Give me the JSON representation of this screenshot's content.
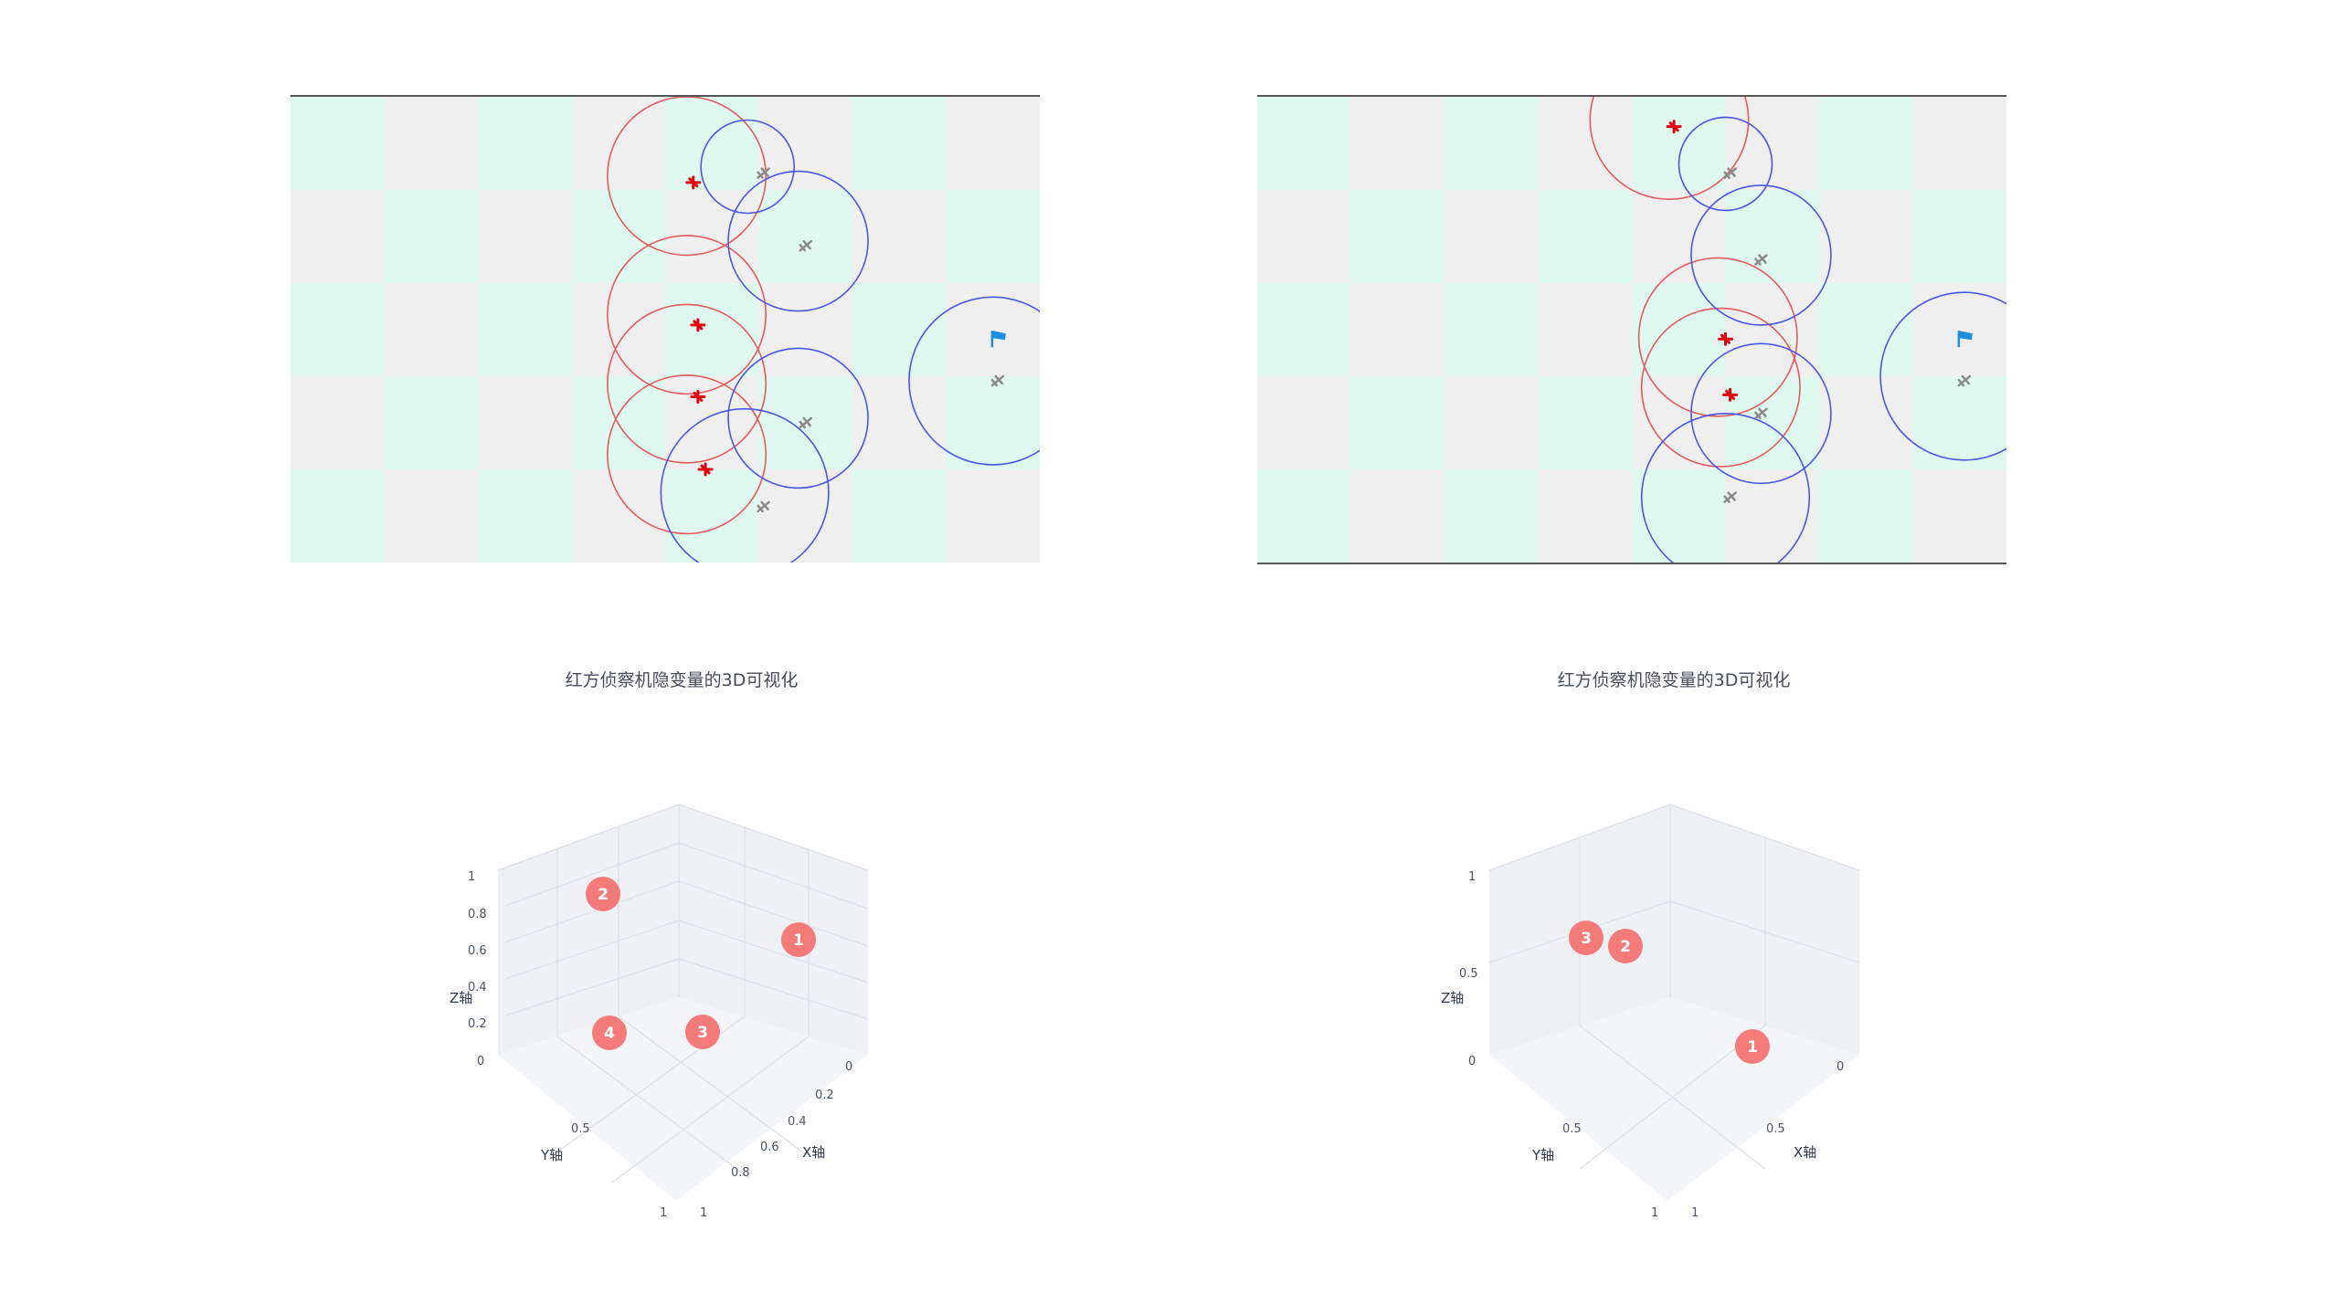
{
  "colors": {
    "tile_light": "#dff8f0",
    "tile_gray": "#efefef",
    "red_ring": "#e45b5b",
    "blue_ring": "#4b55e8",
    "red_unit": "#e0000f",
    "blue_unit": "#8a8a8a",
    "flag": "#1d8fe3",
    "marker": "#f57b7b"
  },
  "boards": [
    {
      "id": "left",
      "grid": {
        "cols": 8,
        "rows": 5
      },
      "red_units": [
        {
          "c": 4.3,
          "r": 0.92
        },
        {
          "c": 4.35,
          "r": 2.45
        },
        {
          "c": 4.35,
          "r": 3.22
        },
        {
          "c": 4.43,
          "r": 4.0
        }
      ],
      "blue_units": [
        {
          "c": 5.05,
          "r": 0.82
        },
        {
          "c": 5.5,
          "r": 1.6
        },
        {
          "c": 5.5,
          "r": 3.5
        },
        {
          "c": 5.05,
          "r": 4.4
        },
        {
          "c": 7.55,
          "r": 3.05
        }
      ],
      "flag": {
        "c": 7.55,
        "r": 2.6
      },
      "red_ranges": [
        {
          "c": 4.23,
          "r": 0.85,
          "rad": 0.85
        },
        {
          "c": 4.23,
          "r": 2.34,
          "rad": 0.85
        },
        {
          "c": 4.23,
          "r": 3.08,
          "rad": 0.85
        },
        {
          "c": 4.23,
          "r": 3.84,
          "rad": 0.85
        }
      ],
      "blue_ranges": [
        {
          "c": 4.88,
          "r": 0.75,
          "rad": 0.5
        },
        {
          "c": 5.42,
          "r": 1.55,
          "rad": 0.75
        },
        {
          "c": 5.42,
          "r": 3.45,
          "rad": 0.75
        },
        {
          "c": 4.85,
          "r": 4.25,
          "rad": 0.9
        },
        {
          "c": 7.5,
          "r": 3.05,
          "rad": 0.9
        }
      ]
    },
    {
      "id": "right",
      "grid": {
        "cols": 8,
        "rows": 5
      },
      "red_units": [
        {
          "c": 4.45,
          "r": 0.32
        },
        {
          "c": 5.0,
          "r": 2.6
        },
        {
          "c": 5.05,
          "r": 3.2
        }
      ],
      "blue_units": [
        {
          "c": 5.05,
          "r": 0.82
        },
        {
          "c": 5.38,
          "r": 1.75
        },
        {
          "c": 5.38,
          "r": 3.4
        },
        {
          "c": 5.05,
          "r": 4.3
        },
        {
          "c": 7.55,
          "r": 3.05
        }
      ],
      "flag": {
        "c": 7.55,
        "r": 2.6
      },
      "red_ranges": [
        {
          "c": 4.4,
          "r": 0.25,
          "rad": 0.85
        },
        {
          "c": 4.92,
          "r": 2.58,
          "rad": 0.85
        },
        {
          "c": 4.95,
          "r": 3.12,
          "rad": 0.85
        }
      ],
      "blue_ranges": [
        {
          "c": 5.0,
          "r": 0.72,
          "rad": 0.5
        },
        {
          "c": 5.38,
          "r": 1.7,
          "rad": 0.75
        },
        {
          "c": 5.38,
          "r": 3.4,
          "rad": 0.75
        },
        {
          "c": 5.0,
          "r": 4.3,
          "rad": 0.9
        },
        {
          "c": 7.55,
          "r": 3.0,
          "rad": 0.9
        }
      ]
    }
  ],
  "chart_data": [
    {
      "type": "scatter3d",
      "title": "红方侦察机隐变量的3D可视化",
      "xlabel": "X轴",
      "ylabel": "Y轴",
      "zlabel": "Z轴",
      "xticks": [
        "0",
        "0.2",
        "0.4",
        "0.6",
        "0.8",
        "1"
      ],
      "yticks": [
        "0",
        "0.5",
        "1"
      ],
      "zticks": [
        "0",
        "0.2",
        "0.4",
        "0.6",
        "0.8",
        "1"
      ],
      "points": [
        {
          "label": "1",
          "x": 0.0,
          "y": 0.0,
          "z": 0.71
        },
        {
          "label": "2",
          "x": 0.0,
          "y": 1.0,
          "z": 1.0
        },
        {
          "label": "3",
          "x": 1.0,
          "y": 1.0,
          "z": 0.6
        },
        {
          "label": "4",
          "x": 0.3,
          "y": 1.0,
          "z": 0.35
        }
      ]
    },
    {
      "type": "scatter3d",
      "title": "红方侦察机隐变量的3D可视化",
      "xlabel": "X轴",
      "ylabel": "Y轴",
      "zlabel": "Z轴",
      "xticks": [
        "0",
        "0.5",
        "1"
      ],
      "yticks": [
        "0",
        "0.5",
        "1"
      ],
      "zticks": [
        "0",
        "0.5",
        "1"
      ],
      "points": [
        {
          "label": "1",
          "x": 0.6,
          "y": 0.0,
          "z": 0.32
        },
        {
          "label": "2",
          "x": 0.0,
          "y": 1.0,
          "z": 0.86
        },
        {
          "label": "3",
          "x": 0.1,
          "y": 1.0,
          "z": 0.93
        }
      ]
    }
  ]
}
